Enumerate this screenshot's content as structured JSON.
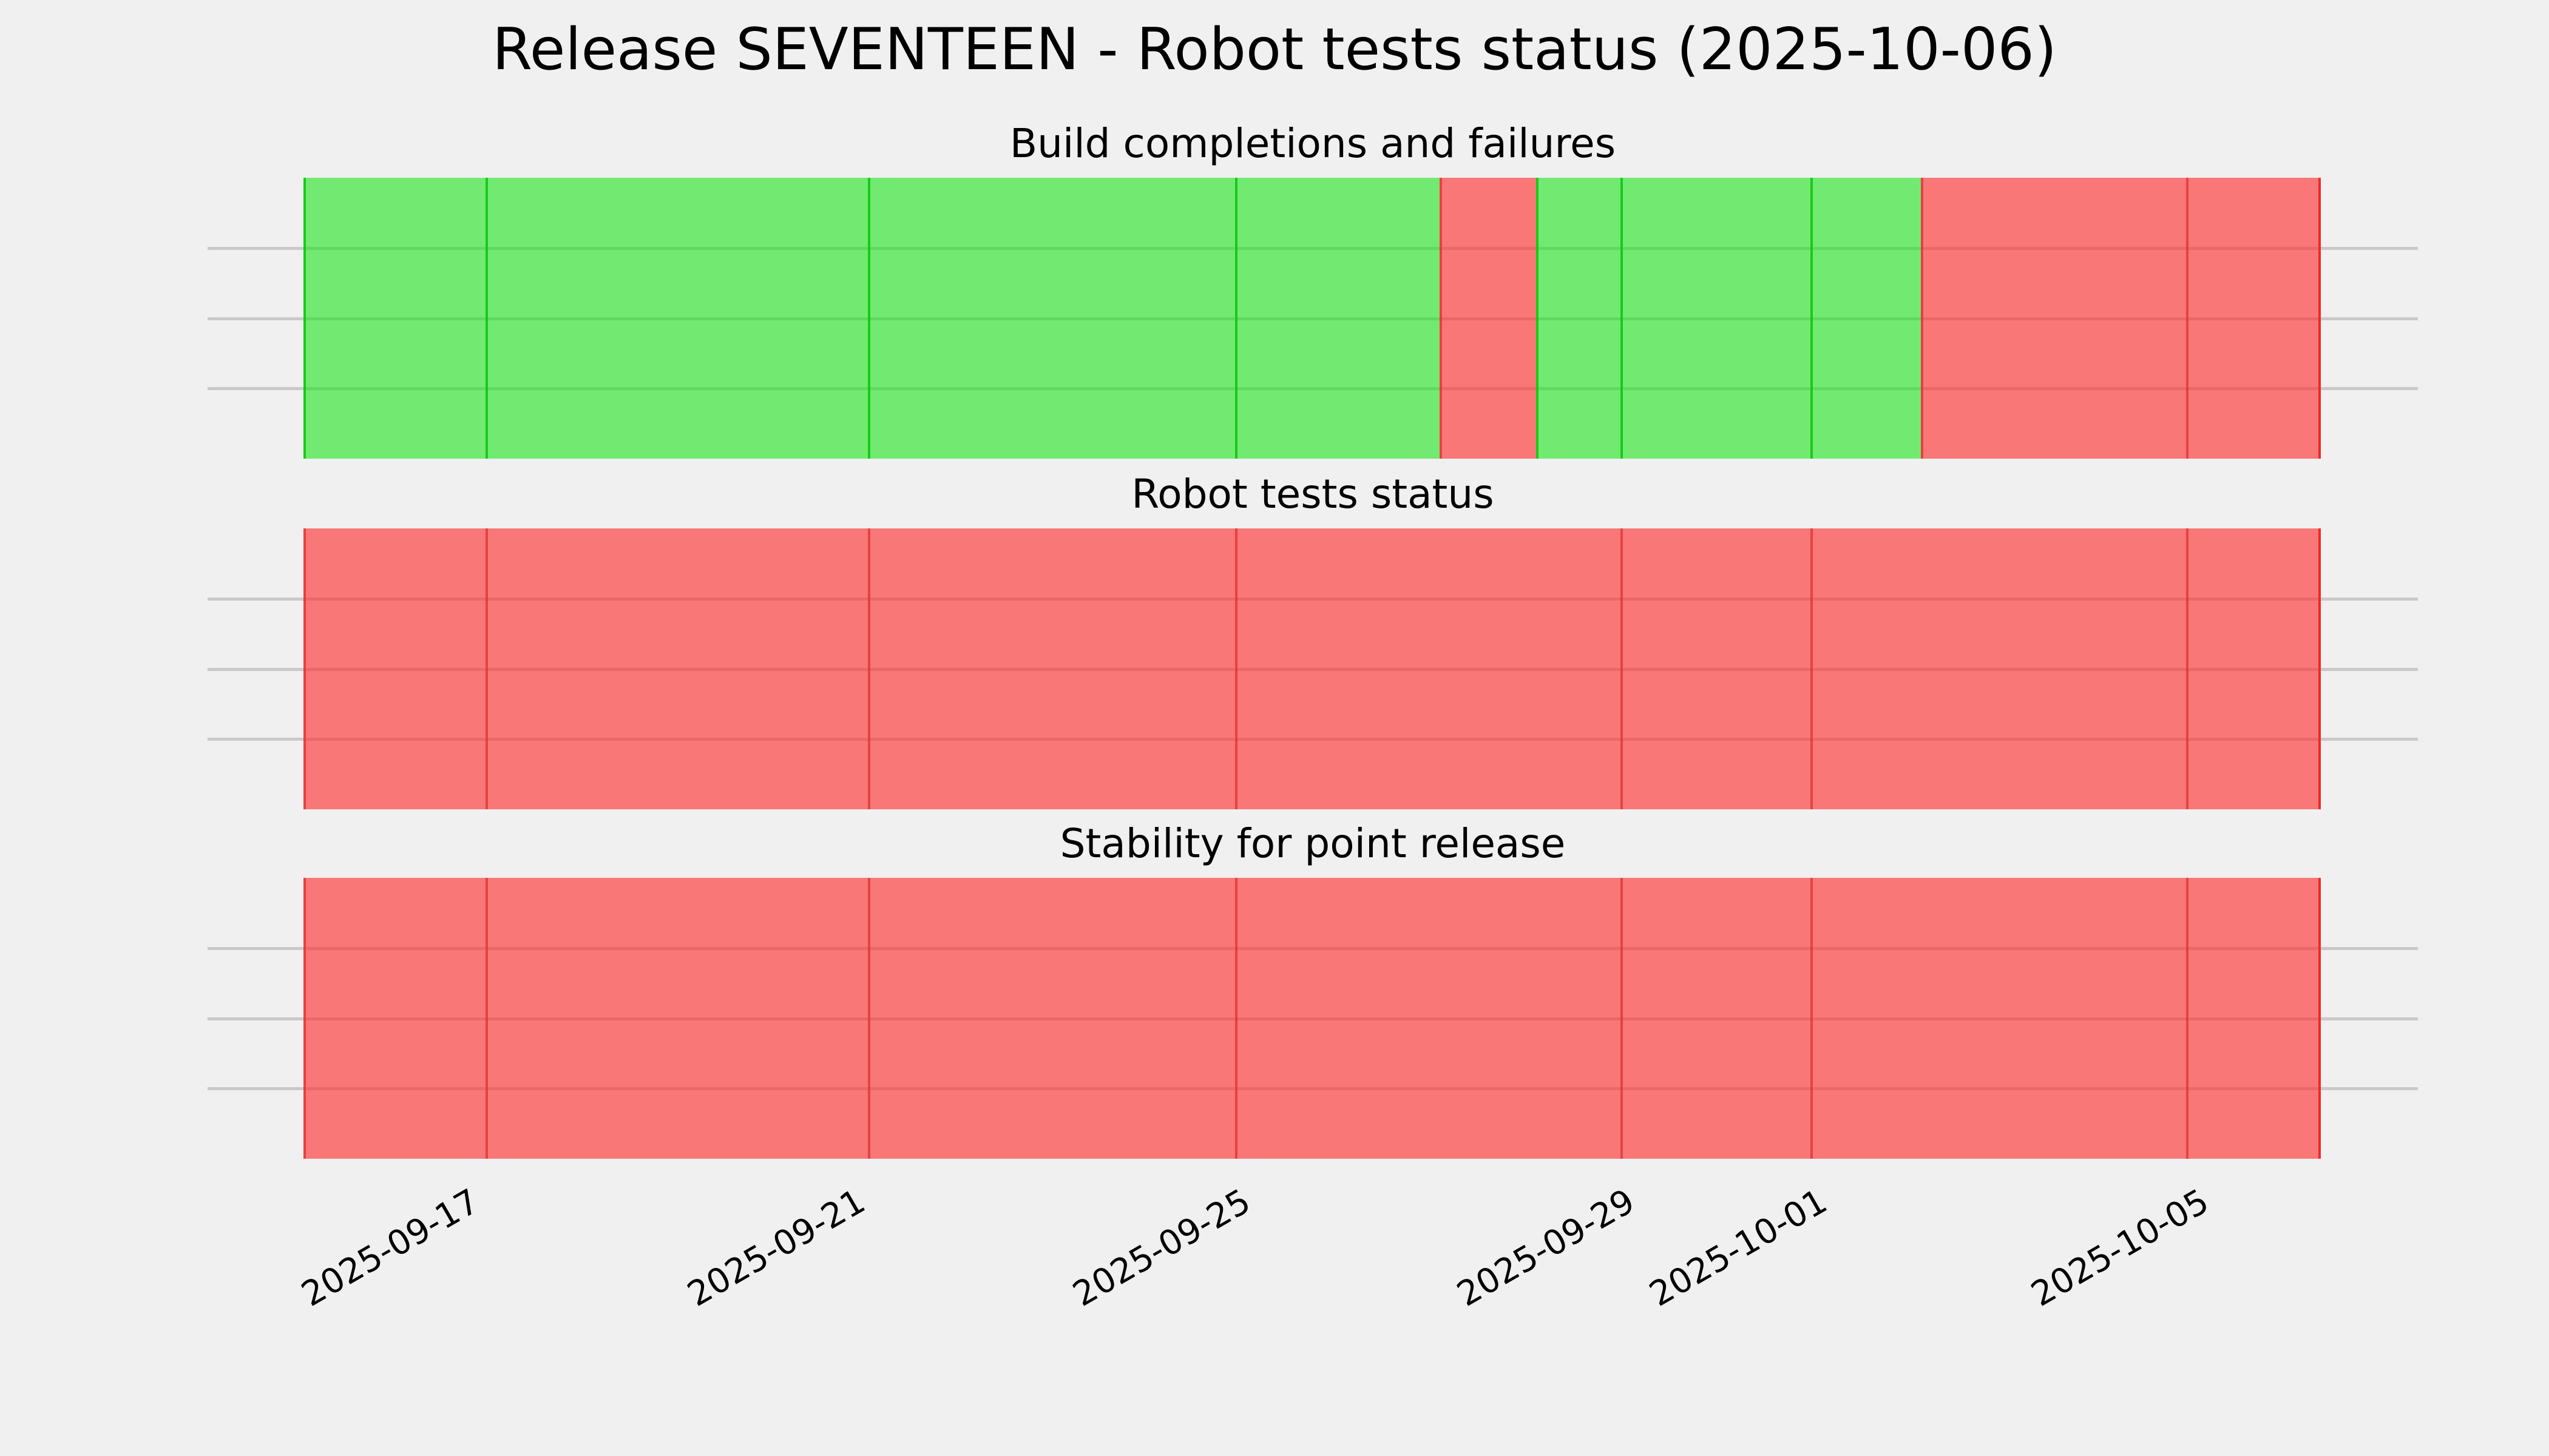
{
  "figure": {
    "title": "Release SEVENTEEN - Robot tests status (2025-10-06)",
    "background_color": "#f0f0f0",
    "gridline_color": "#c9c9c9",
    "pass_color": "#6fe96f",
    "fail_color": "#f87575",
    "pass_edge_color": "#1fc41f",
    "fail_edge_color": "#e04545"
  },
  "x_axis": {
    "tick_labels": [
      "2025-09-17",
      "2025-09-21",
      "2025-09-25",
      "2025-09-29",
      "2025-10-01",
      "2025-10-05"
    ],
    "tick_fracs": [
      8.15,
      27.26,
      46.36,
      65.43,
      74.94,
      93.89
    ],
    "label_rotation_deg": 30,
    "range_start": "2025-09-15T07:00",
    "range_end": "2025-10-06T06:00"
  },
  "chart_data": [
    {
      "type": "heatmap",
      "title": "Build completions and failures",
      "xlabel": "",
      "ylabel": "",
      "grid": true,
      "grid_rows": 4,
      "legend": "none",
      "x_range": [
        "2025-09-15T07:00",
        "2025-10-06T06:00"
      ],
      "segments": [
        {
          "start": "2025-09-15T07:00",
          "end": "2025-09-17T04:00",
          "status": "pass",
          "start_frac": 0,
          "end_frac": 9.03
        },
        {
          "start": "2025-09-17T04:00",
          "end": "2025-09-21T04:00",
          "status": "pass",
          "start_frac": 9.03,
          "end_frac": 27.98
        },
        {
          "start": "2025-09-21T04:00",
          "end": "2025-09-25T00:00",
          "status": "pass",
          "start_frac": 27.98,
          "end_frac": 46.18
        },
        {
          "start": "2025-09-25T00:00",
          "end": "2025-09-27T02:00",
          "status": "pass",
          "start_frac": 46.18,
          "end_frac": 56.32
        },
        {
          "start": "2025-09-27T02:00",
          "end": "2025-09-28T02:00",
          "status": "fail",
          "start_frac": 56.32,
          "end_frac": 61.1
        },
        {
          "start": "2025-09-28T02:00",
          "end": "2025-09-29T00:00",
          "status": "pass",
          "start_frac": 61.1,
          "end_frac": 65.28
        },
        {
          "start": "2025-09-29T00:00",
          "end": "2025-10-01T00:00",
          "status": "pass",
          "start_frac": 65.28,
          "end_frac": 74.7
        },
        {
          "start": "2025-10-01T00:00",
          "end": "2025-10-02T02:00",
          "status": "pass",
          "start_frac": 74.7,
          "end_frac": 80.17
        },
        {
          "start": "2025-10-02T02:00",
          "end": "2025-10-04T20:00",
          "status": "fail",
          "start_frac": 80.17,
          "end_frac": 93.32
        },
        {
          "start": "2025-10-04T20:00",
          "end": "2025-10-06T06:00",
          "status": "fail",
          "start_frac": 93.32,
          "end_frac": 100
        }
      ]
    },
    {
      "type": "heatmap",
      "title": "Robot tests status",
      "xlabel": "",
      "ylabel": "",
      "grid": true,
      "grid_rows": 4,
      "legend": "none",
      "x_range": [
        "2025-09-15T07:00",
        "2025-10-06T06:00"
      ],
      "segments": [
        {
          "start": "2025-09-15T07:00",
          "end": "2025-09-17T04:00",
          "status": "fail",
          "start_frac": 0,
          "end_frac": 9.03
        },
        {
          "start": "2025-09-17T04:00",
          "end": "2025-09-21T04:00",
          "status": "fail",
          "start_frac": 9.03,
          "end_frac": 27.98
        },
        {
          "start": "2025-09-21T04:00",
          "end": "2025-09-25T00:00",
          "status": "fail",
          "start_frac": 27.98,
          "end_frac": 46.18
        },
        {
          "start": "2025-09-25T00:00",
          "end": "2025-09-29T00:00",
          "status": "fail",
          "start_frac": 46.18,
          "end_frac": 65.28
        },
        {
          "start": "2025-09-29T00:00",
          "end": "2025-10-01T00:00",
          "status": "fail",
          "start_frac": 65.28,
          "end_frac": 74.7
        },
        {
          "start": "2025-10-01T00:00",
          "end": "2025-10-04T20:00",
          "status": "fail",
          "start_frac": 74.7,
          "end_frac": 93.32
        },
        {
          "start": "2025-10-04T20:00",
          "end": "2025-10-06T06:00",
          "status": "fail",
          "start_frac": 93.32,
          "end_frac": 100
        }
      ]
    },
    {
      "type": "heatmap",
      "title": "Stability for point release",
      "xlabel": "",
      "ylabel": "",
      "grid": true,
      "grid_rows": 4,
      "legend": "none",
      "x_range": [
        "2025-09-15T07:00",
        "2025-10-06T06:00"
      ],
      "segments": [
        {
          "start": "2025-09-15T07:00",
          "end": "2025-09-17T04:00",
          "status": "fail",
          "start_frac": 0,
          "end_frac": 9.03
        },
        {
          "start": "2025-09-17T04:00",
          "end": "2025-09-21T04:00",
          "status": "fail",
          "start_frac": 9.03,
          "end_frac": 27.98
        },
        {
          "start": "2025-09-21T04:00",
          "end": "2025-09-25T00:00",
          "status": "fail",
          "start_frac": 27.98,
          "end_frac": 46.18
        },
        {
          "start": "2025-09-25T00:00",
          "end": "2025-09-29T00:00",
          "status": "fail",
          "start_frac": 46.18,
          "end_frac": 65.28
        },
        {
          "start": "2025-09-29T00:00",
          "end": "2025-10-01T00:00",
          "status": "fail",
          "start_frac": 65.28,
          "end_frac": 74.7
        },
        {
          "start": "2025-10-01T00:00",
          "end": "2025-10-04T20:00",
          "status": "fail",
          "start_frac": 74.7,
          "end_frac": 93.32
        },
        {
          "start": "2025-10-04T20:00",
          "end": "2025-10-06T06:00",
          "status": "fail",
          "start_frac": 93.32,
          "end_frac": 100
        }
      ]
    }
  ]
}
